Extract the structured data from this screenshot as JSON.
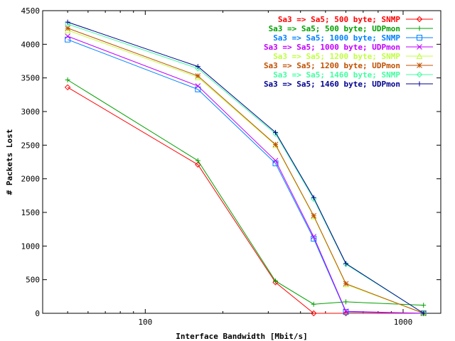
{
  "chart_data": {
    "type": "line",
    "title": "",
    "xlabel": "Interface Bandwidth [Mbit/s]",
    "ylabel": "# Packets Lost",
    "xscale": "log",
    "xlim": [
      40,
      1400
    ],
    "ylim": [
      0,
      4500
    ],
    "yticks": [
      0,
      500,
      1000,
      1500,
      2000,
      2500,
      3000,
      3500,
      4000,
      4500
    ],
    "xticks": [
      100,
      1000
    ],
    "xtick_labels": [
      "100",
      "1000"
    ],
    "ytick_labels": [
      "0",
      "500",
      "1000",
      "1500",
      "2000",
      "2500",
      "3000",
      "3500",
      "4000",
      "4500"
    ],
    "grid": false,
    "legend_position": "top-right",
    "series": [
      {
        "name": "Sa3 => Sa5;  500 byte; SNMP",
        "color": "#ff0000",
        "marker": "diamond",
        "x": [
          50,
          160,
          320,
          450,
          600,
          1200
        ],
        "y": [
          3360,
          2210,
          460,
          0,
          0,
          0
        ]
      },
      {
        "name": "Sa3 => Sa5;  500 byte; UDPmon",
        "color": "#00a000",
        "marker": "plus",
        "x": [
          50,
          160,
          320,
          450,
          600,
          1200
        ],
        "y": [
          3470,
          2270,
          480,
          135,
          170,
          120
        ]
      },
      {
        "name": "Sa3 => Sa5; 1000 byte; SNMP",
        "color": "#0080ff",
        "marker": "square",
        "x": [
          50,
          160,
          320,
          450,
          600,
          1200
        ],
        "y": [
          4070,
          3330,
          2230,
          1110,
          20,
          0
        ]
      },
      {
        "name": "Sa3 => Sa5; 1000 byte; UDPmon",
        "color": "#c000ff",
        "marker": "x",
        "x": [
          50,
          160,
          320,
          450,
          600,
          1200
        ],
        "y": [
          4120,
          3380,
          2270,
          1140,
          30,
          0
        ]
      },
      {
        "name": "Sa3 => Sa5; 1200 byte; SNMP",
        "color": "#c0ff40",
        "marker": "triangle",
        "x": [
          50,
          160,
          320,
          450,
          600,
          1200
        ],
        "y": [
          4210,
          3510,
          2500,
          1440,
          430,
          0
        ]
      },
      {
        "name": "Sa3 => Sa5; 1200 byte; UDPmon",
        "color": "#c05000",
        "marker": "star",
        "x": [
          50,
          160,
          320,
          450,
          600,
          1200
        ],
        "y": [
          4240,
          3530,
          2510,
          1450,
          440,
          0
        ]
      },
      {
        "name": "Sa3 => Sa5; 1460 byte; SNMP",
        "color": "#40ffa0",
        "marker": "diamond",
        "x": [
          50,
          160,
          320,
          450,
          600,
          1200
        ],
        "y": [
          4300,
          3640,
          2670,
          1700,
          730,
          0
        ]
      },
      {
        "name": "Sa3 => Sa5; 1460 byte; UDPmon",
        "color": "#000090",
        "marker": "plus",
        "x": [
          50,
          160,
          320,
          450,
          600,
          1200
        ],
        "y": [
          4330,
          3670,
          2690,
          1720,
          740,
          0
        ]
      }
    ]
  }
}
